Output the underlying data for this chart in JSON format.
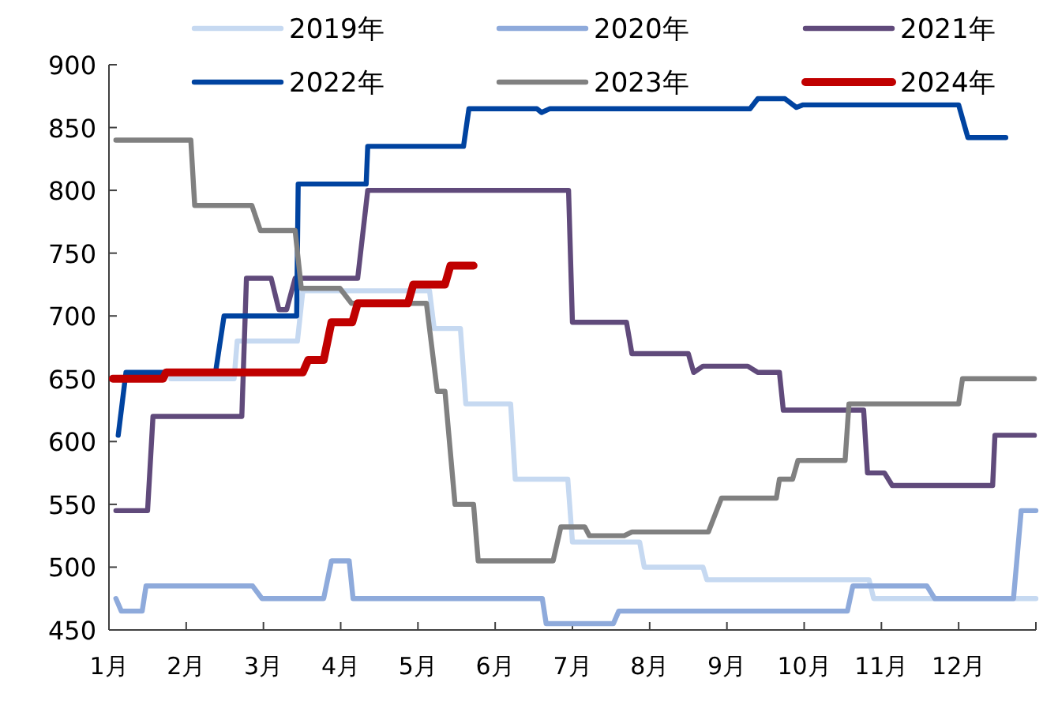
{
  "chart_data": {
    "type": "line",
    "legend": "top",
    "grid": false,
    "marker": "none",
    "line_style": "solid",
    "xlim": [
      1,
      13
    ],
    "xticks": [
      {
        "value": 1,
        "label": "1月"
      },
      {
        "value": 2,
        "label": "2月"
      },
      {
        "value": 3,
        "label": "3月"
      },
      {
        "value": 4,
        "label": "4月"
      },
      {
        "value": 5,
        "label": "5月"
      },
      {
        "value": 6,
        "label": "6月"
      },
      {
        "value": 7,
        "label": "7月"
      },
      {
        "value": 8,
        "label": "8月"
      },
      {
        "value": 9,
        "label": "9月"
      },
      {
        "value": 10,
        "label": "10月"
      },
      {
        "value": 11,
        "label": "11月"
      },
      {
        "value": 12,
        "label": "12月"
      },
      {
        "value": 13,
        "label": null
      }
    ],
    "ylim": [
      450,
      900
    ],
    "yticks": [
      450,
      500,
      550,
      600,
      650,
      700,
      750,
      800,
      850,
      900
    ],
    "series": [
      {
        "name": "2019年",
        "color": "#c6d9f1",
        "x": [
          1.8,
          2.62,
          2.66,
          3.44,
          3.51,
          5.15,
          5.21,
          5.55,
          5.62,
          6.2,
          6.26,
          6.94,
          7.0,
          7.87,
          7.93,
          8.69,
          8.74,
          10.84,
          10.9,
          13.0
        ],
        "values": [
          650,
          650,
          680,
          680,
          720,
          720,
          690,
          690,
          630,
          630,
          570,
          570,
          520,
          520,
          500,
          500,
          490,
          490,
          475,
          475
        ]
      },
      {
        "name": "2020年",
        "color": "#8eaadb",
        "x": [
          1.09,
          1.16,
          1.43,
          1.48,
          2.86,
          2.98,
          3.78,
          3.88,
          4.11,
          4.16,
          6.61,
          6.66,
          7.53,
          7.6,
          10.56,
          10.63,
          11.59,
          11.69,
          12.71,
          12.81,
          13.0
        ],
        "values": [
          475,
          465,
          465,
          485,
          485,
          475,
          475,
          505,
          505,
          475,
          475,
          455,
          455,
          465,
          465,
          485,
          485,
          475,
          475,
          545,
          545
        ]
      },
      {
        "name": "2021年",
        "color": "#604a7b",
        "x": [
          1.09,
          1.5,
          1.57,
          2.72,
          2.78,
          3.1,
          3.2,
          3.3,
          3.41,
          4.22,
          4.35,
          6.95,
          7.0,
          7.7,
          7.77,
          8.5,
          8.57,
          8.69,
          9.27,
          9.4,
          9.68,
          9.73,
          10.77,
          10.82,
          11.04,
          11.14,
          12.44,
          12.47,
          12.98
        ],
        "values": [
          545,
          545,
          620,
          620,
          730,
          730,
          705,
          705,
          730,
          730,
          800,
          800,
          695,
          695,
          670,
          670,
          655,
          660,
          660,
          655,
          655,
          625,
          625,
          575,
          575,
          565,
          565,
          605,
          605
        ]
      },
      {
        "name": "2022年",
        "color": "#0043a0",
        "x": [
          1.12,
          1.22,
          2.38,
          2.49,
          3.43,
          3.45,
          4.33,
          4.35,
          5.59,
          5.66,
          6.54,
          6.6,
          6.71,
          9.3,
          9.4,
          9.75,
          9.9,
          9.98,
          12.0,
          12.12,
          12.61
        ],
        "values": [
          605,
          655,
          655,
          700,
          700,
          805,
          805,
          835,
          835,
          865,
          865,
          862,
          865,
          865,
          873,
          873,
          866,
          868,
          868,
          842,
          842
        ]
      },
      {
        "name": "2023年",
        "color": "#808080",
        "x": [
          1.09,
          2.06,
          2.11,
          2.85,
          2.96,
          3.41,
          3.49,
          3.99,
          4.14,
          5.11,
          5.25,
          5.35,
          5.48,
          5.72,
          5.78,
          6.75,
          6.85,
          7.16,
          7.22,
          7.67,
          7.77,
          8.76,
          8.93,
          9.64,
          9.68,
          9.85,
          9.92,
          10.53,
          10.58,
          12.0,
          12.05,
          12.98
        ],
        "values": [
          840,
          840,
          788,
          788,
          768,
          768,
          722,
          722,
          710,
          710,
          640,
          640,
          550,
          550,
          505,
          505,
          532,
          532,
          525,
          525,
          528,
          528,
          555,
          555,
          570,
          570,
          585,
          585,
          630,
          630,
          650,
          650
        ]
      },
      {
        "name": "2024年",
        "color": "#c00000",
        "x": [
          1.05,
          1.7,
          1.74,
          3.51,
          3.58,
          3.78,
          3.88,
          4.15,
          4.22,
          4.87,
          4.94,
          5.35,
          5.42,
          5.72
        ],
        "values": [
          650,
          650,
          655,
          655,
          665,
          665,
          695,
          695,
          710,
          710,
          725,
          725,
          740,
          740
        ]
      }
    ]
  }
}
